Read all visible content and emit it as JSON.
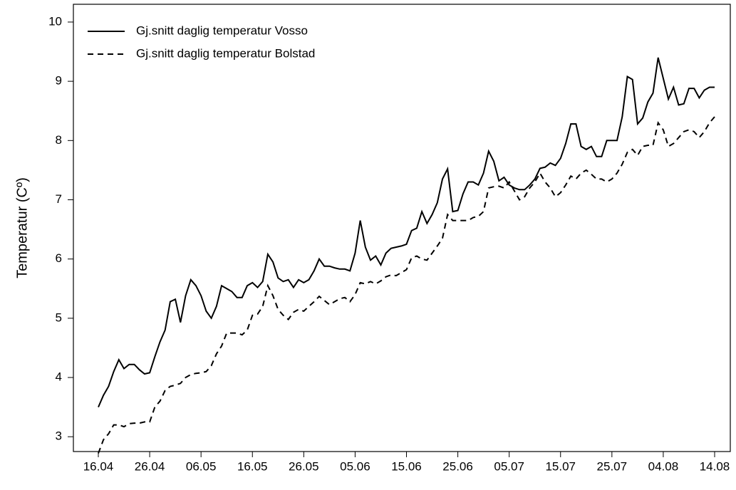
{
  "chart_data": {
    "type": "line",
    "y_label": "Temperatur (Cº)",
    "categories": [
      "16.04",
      null,
      null,
      null,
      null,
      null,
      null,
      null,
      null,
      null,
      "26.04",
      null,
      null,
      null,
      null,
      null,
      null,
      null,
      null,
      null,
      "06.05",
      null,
      null,
      null,
      null,
      null,
      null,
      null,
      null,
      null,
      "16.05",
      null,
      null,
      null,
      null,
      null,
      null,
      null,
      null,
      null,
      "26.05",
      null,
      null,
      null,
      null,
      null,
      null,
      null,
      null,
      null,
      "05.06",
      null,
      null,
      null,
      null,
      null,
      null,
      null,
      null,
      null,
      "15.06",
      null,
      null,
      null,
      null,
      null,
      null,
      null,
      null,
      null,
      "25.06",
      null,
      null,
      null,
      null,
      null,
      null,
      null,
      null,
      null,
      "05.07",
      null,
      null,
      null,
      null,
      null,
      null,
      null,
      null,
      null,
      "15.07",
      null,
      null,
      null,
      null,
      null,
      null,
      null,
      null,
      null,
      "25.07",
      null,
      null,
      null,
      null,
      null,
      null,
      null,
      null,
      null,
      "04.08",
      null,
      null,
      null,
      null,
      null,
      null,
      null,
      null,
      null,
      "14.08"
    ],
    "series": [
      {
        "name": "Gj.snitt daglig temperatur Vosso",
        "color": "#000000",
        "line_style": "solid",
        "values": [
          3.5,
          3.7,
          3.85,
          4.1,
          4.3,
          4.15,
          4.22,
          4.22,
          4.13,
          4.06,
          4.08,
          4.35,
          4.6,
          4.8,
          5.28,
          5.32,
          4.93,
          5.38,
          5.65,
          5.55,
          5.38,
          5.12,
          5.0,
          5.2,
          5.55,
          5.5,
          5.45,
          5.35,
          5.35,
          5.55,
          5.6,
          5.52,
          5.62,
          6.08,
          5.95,
          5.68,
          5.62,
          5.65,
          5.52,
          5.65,
          5.6,
          5.65,
          5.8,
          6.0,
          5.88,
          5.88,
          5.85,
          5.83,
          5.83,
          5.8,
          6.1,
          6.65,
          6.2,
          5.98,
          6.05,
          5.9,
          6.1,
          6.18,
          6.2,
          6.22,
          6.25,
          6.48,
          6.52,
          6.8,
          6.6,
          6.75,
          6.95,
          7.35,
          7.52,
          6.8,
          6.82,
          7.1,
          7.3,
          7.3,
          7.25,
          7.45,
          7.82,
          7.65,
          7.32,
          7.38,
          7.25,
          7.2,
          7.17,
          7.17,
          7.25,
          7.35,
          7.53,
          7.55,
          7.62,
          7.58,
          7.7,
          7.95,
          8.28,
          8.28,
          7.9,
          7.85,
          7.9,
          7.73,
          7.73,
          8.0,
          8.0,
          8.0,
          8.4,
          9.08,
          9.03,
          8.28,
          8.38,
          8.65,
          8.8,
          9.4,
          9.05,
          8.7,
          8.9,
          8.6,
          8.62,
          8.88,
          8.88,
          8.72,
          8.85,
          8.9,
          8.9
        ]
      },
      {
        "name": "Gj.snitt daglig temperatur Bolstad",
        "color": "#000000",
        "line_style": "dashed",
        "values": [
          2.72,
          2.95,
          3.05,
          3.2,
          3.2,
          3.17,
          3.22,
          3.23,
          3.23,
          3.25,
          3.25,
          3.5,
          3.6,
          3.78,
          3.85,
          3.87,
          3.9,
          4.0,
          4.05,
          4.07,
          4.08,
          4.1,
          4.2,
          4.4,
          4.53,
          4.75,
          4.75,
          4.75,
          4.72,
          4.8,
          5.05,
          5.07,
          5.2,
          5.55,
          5.38,
          5.15,
          5.05,
          4.98,
          5.1,
          5.15,
          5.12,
          5.2,
          5.28,
          5.37,
          5.3,
          5.23,
          5.28,
          5.33,
          5.35,
          5.28,
          5.4,
          5.6,
          5.58,
          5.62,
          5.58,
          5.63,
          5.7,
          5.73,
          5.72,
          5.77,
          5.82,
          6.02,
          6.05,
          6.0,
          5.98,
          6.1,
          6.22,
          6.35,
          6.75,
          6.65,
          6.65,
          6.65,
          6.65,
          6.7,
          6.72,
          6.8,
          7.2,
          7.22,
          7.23,
          7.2,
          7.3,
          7.15,
          7.0,
          7.05,
          7.2,
          7.3,
          7.45,
          7.3,
          7.2,
          7.05,
          7.12,
          7.25,
          7.4,
          7.35,
          7.45,
          7.5,
          7.43,
          7.35,
          7.35,
          7.3,
          7.35,
          7.45,
          7.6,
          7.8,
          7.85,
          7.75,
          7.9,
          7.92,
          7.92,
          8.3,
          8.18,
          7.9,
          7.95,
          8.05,
          8.15,
          8.18,
          8.15,
          8.05,
          8.15,
          8.3,
          8.4
        ]
      }
    ],
    "ylim": [
      2.75,
      10.3
    ],
    "yticks": [
      3,
      4,
      5,
      6,
      7,
      8,
      9,
      10
    ],
    "legend": "top-left",
    "grid": false
  }
}
